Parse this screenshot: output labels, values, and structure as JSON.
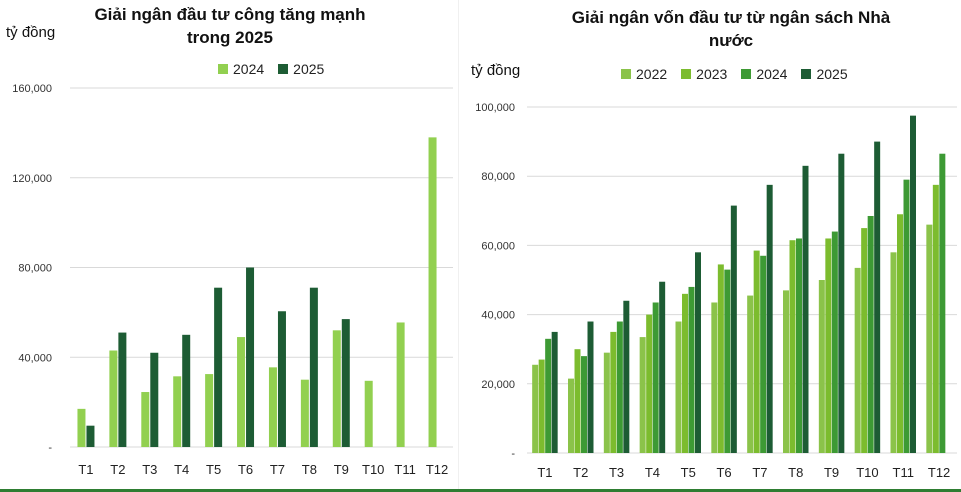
{
  "colors": {
    "c2022": "#8bc34a",
    "c2023": "#7cbc2e",
    "c2024": "#3d9a34",
    "c2025": "#1d5c34",
    "left2024": "#92d050",
    "left2025": "#1d5c34",
    "grid": "#d9d9d9"
  },
  "chart_data": [
    {
      "type": "bar",
      "title": "Giải ngân đầu tư công tăng mạnh trong 2025",
      "title_lines": [
        "Giải ngân đầu tư công tăng mạnh",
        "trong 2025"
      ],
      "ylabel": "tỷ đồng",
      "xlabel": "",
      "ylim": [
        0,
        160000
      ],
      "yticks": [
        0,
        40000,
        80000,
        120000,
        160000
      ],
      "ytick_labels": [
        "-",
        "40,000",
        "80,000",
        "120,000",
        "160,000"
      ],
      "grid": true,
      "legend_position": "top",
      "categories": [
        "T1",
        "T2",
        "T3",
        "T4",
        "T5",
        "T6",
        "T7",
        "T8",
        "T9",
        "T10",
        "T11",
        "T12"
      ],
      "series": [
        {
          "name": "2024",
          "values": [
            17000,
            43000,
            24500,
            31500,
            32500,
            49000,
            35500,
            30000,
            52000,
            29500,
            55500,
            138000
          ]
        },
        {
          "name": "2025",
          "values": [
            9500,
            51000,
            42000,
            50000,
            71000,
            80000,
            60500,
            71000,
            57000,
            null,
            null,
            null
          ]
        }
      ]
    },
    {
      "type": "bar",
      "title": "Giải ngân vốn đầu tư từ ngân sách Nhà nước",
      "title_lines": [
        "Giải ngân vốn đầu tư từ ngân sách Nhà",
        "nước"
      ],
      "ylabel": "tỷ đồng",
      "xlabel": "",
      "ylim": [
        0,
        100000
      ],
      "yticks": [
        0,
        20000,
        40000,
        60000,
        80000,
        100000
      ],
      "ytick_labels": [
        "-",
        "20,000",
        "40,000",
        "60,000",
        "80,000",
        "100,000"
      ],
      "grid": true,
      "legend_position": "top",
      "categories": [
        "T1",
        "T2",
        "T3",
        "T4",
        "T5",
        "T6",
        "T7",
        "T8",
        "T9",
        "T10",
        "T11",
        "T12"
      ],
      "series": [
        {
          "name": "2022",
          "values": [
            25500,
            21500,
            29000,
            33500,
            38000,
            43500,
            45500,
            47000,
            50000,
            53500,
            58000,
            66000
          ]
        },
        {
          "name": "2023",
          "values": [
            27000,
            30000,
            35000,
            40000,
            46000,
            54500,
            58500,
            61500,
            62000,
            65000,
            69000,
            77500
          ]
        },
        {
          "name": "2024",
          "values": [
            33000,
            28000,
            38000,
            43500,
            48000,
            53000,
            57000,
            62000,
            64000,
            68500,
            79000,
            86500
          ]
        },
        {
          "name": "2025",
          "values": [
            35000,
            38000,
            44000,
            49500,
            58000,
            71500,
            77500,
            83000,
            86500,
            90000,
            97500,
            null
          ]
        }
      ]
    }
  ]
}
